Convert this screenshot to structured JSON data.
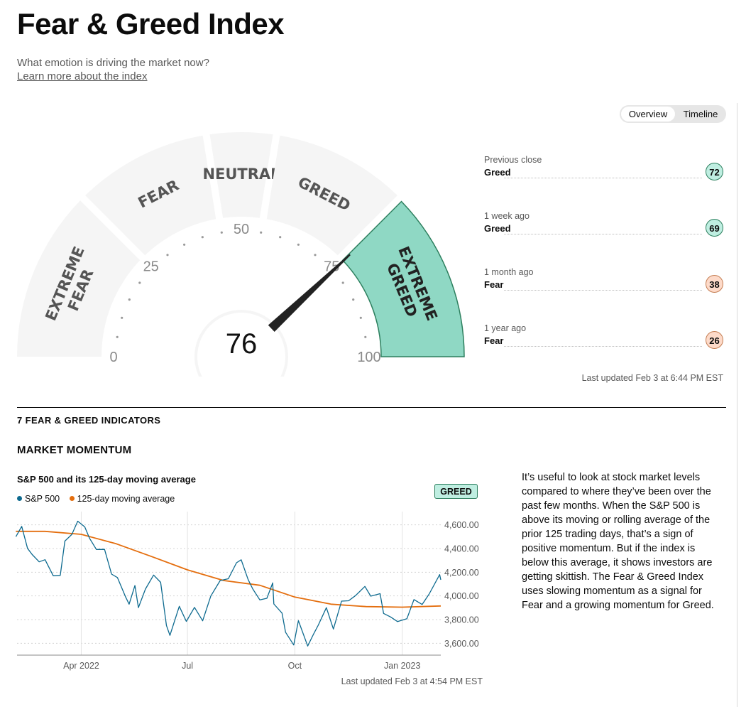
{
  "header": {
    "title": "Fear & Greed Index",
    "subtitle": "What emotion is driving the market now?",
    "learn_more": "Learn more about the index"
  },
  "view_toggle": {
    "options": [
      "Overview",
      "Timeline"
    ],
    "selected": "Overview"
  },
  "gauge": {
    "value": 76,
    "scale_labels": [
      "0",
      "25",
      "50",
      "75",
      "100"
    ],
    "segments": [
      {
        "label_lines": [
          "EXTREME",
          "FEAR"
        ],
        "range": [
          0,
          25
        ]
      },
      {
        "label_lines": [
          "FEAR"
        ],
        "range": [
          25,
          45
        ]
      },
      {
        "label_lines": [
          "NEUTRAL"
        ],
        "range": [
          45,
          55
        ]
      },
      {
        "label_lines": [
          "GREED"
        ],
        "range": [
          55,
          75
        ]
      },
      {
        "label_lines": [
          "EXTREME",
          "GREED"
        ],
        "range": [
          75,
          100
        ]
      }
    ],
    "active_segment": 4,
    "colors": {
      "inactive": "#f5f5f5",
      "active": "#8fd8c4",
      "active_border": "#2d7f5e",
      "needle": "#222222",
      "segment_text": "#555555",
      "active_text": "#222222"
    }
  },
  "history": [
    {
      "label": "Previous close",
      "rating": "Greed",
      "value": "72",
      "tone": "greed"
    },
    {
      "label": "1 week ago",
      "rating": "Greed",
      "value": "69",
      "tone": "greed"
    },
    {
      "label": "1 month ago",
      "rating": "Fear",
      "value": "38",
      "tone": "fear"
    },
    {
      "label": "1 year ago",
      "rating": "Fear",
      "value": "26",
      "tone": "fear"
    }
  ],
  "last_updated_top": "Last updated Feb 3 at 6:44 PM EST",
  "indicators_heading": "7 FEAR & GREED INDICATORS",
  "momentum": {
    "heading": "MARKET MOMENTUM",
    "rating_tag": "GREED",
    "description": "It’s useful to look at stock market levels compared to where they’ve been over the past few months. When the S&P 500 is above its moving or rolling average of the prior 125 trading days, that’s a sign of positive momentum. But if the index is below this average, it shows investors are getting skittish. The Fear & Greed Index uses slowing momentum as a signal for Fear and a growing momentum for Greed.",
    "last_updated": "Last updated Feb 3 at 4:54 PM EST"
  },
  "chart_data": {
    "type": "line",
    "title": "S&P 500 and its 125-day moving average",
    "x_ticks": [
      "Apr 2022",
      "Jul",
      "Oct",
      "Jan 2023"
    ],
    "x_tick_dates": [
      "2022-04-01",
      "2022-07-01",
      "2022-10-01",
      "2023-01-01"
    ],
    "x_range": [
      "2022-02-05",
      "2023-02-03"
    ],
    "y_ticks": [
      "4,600.00",
      "4,400.00",
      "4,200.00",
      "4,000.00",
      "3,800.00",
      "3,600.00"
    ],
    "y_range": [
      3500,
      4700
    ],
    "grid": true,
    "legend_position": "top-left",
    "series": [
      {
        "name": "S&P 500",
        "color": "#0d6a8f",
        "points": [
          [
            "2022-02-04",
            4500
          ],
          [
            "2022-02-09",
            4587
          ],
          [
            "2022-02-14",
            4401
          ],
          [
            "2022-02-18",
            4349
          ],
          [
            "2022-02-24",
            4288
          ],
          [
            "2022-03-01",
            4306
          ],
          [
            "2022-03-08",
            4170
          ],
          [
            "2022-03-14",
            4173
          ],
          [
            "2022-03-18",
            4463
          ],
          [
            "2022-03-24",
            4520
          ],
          [
            "2022-03-29",
            4631
          ],
          [
            "2022-04-04",
            4583
          ],
          [
            "2022-04-08",
            4488
          ],
          [
            "2022-04-14",
            4392
          ],
          [
            "2022-04-21",
            4393
          ],
          [
            "2022-04-27",
            4184
          ],
          [
            "2022-05-02",
            4155
          ],
          [
            "2022-05-09",
            3991
          ],
          [
            "2022-05-12",
            3930
          ],
          [
            "2022-05-17",
            4088
          ],
          [
            "2022-05-20",
            3901
          ],
          [
            "2022-05-26",
            4058
          ],
          [
            "2022-06-02",
            4176
          ],
          [
            "2022-06-08",
            4115
          ],
          [
            "2022-06-13",
            3750
          ],
          [
            "2022-06-16",
            3667
          ],
          [
            "2022-06-24",
            3912
          ],
          [
            "2022-06-30",
            3785
          ],
          [
            "2022-07-07",
            3903
          ],
          [
            "2022-07-14",
            3790
          ],
          [
            "2022-07-21",
            3999
          ],
          [
            "2022-07-29",
            4130
          ],
          [
            "2022-08-05",
            4145
          ],
          [
            "2022-08-12",
            4280
          ],
          [
            "2022-08-16",
            4305
          ],
          [
            "2022-08-22",
            4138
          ],
          [
            "2022-08-26",
            4058
          ],
          [
            "2022-09-01",
            3966
          ],
          [
            "2022-09-07",
            3980
          ],
          [
            "2022-09-12",
            4110
          ],
          [
            "2022-09-13",
            3932
          ],
          [
            "2022-09-20",
            3855
          ],
          [
            "2022-09-23",
            3693
          ],
          [
            "2022-09-30",
            3586
          ],
          [
            "2022-10-04",
            3791
          ],
          [
            "2022-10-12",
            3577
          ],
          [
            "2022-10-17",
            3677
          ],
          [
            "2022-10-21",
            3752
          ],
          [
            "2022-10-28",
            3901
          ],
          [
            "2022-11-03",
            3720
          ],
          [
            "2022-11-10",
            3956
          ],
          [
            "2022-11-16",
            3959
          ],
          [
            "2022-11-22",
            4003
          ],
          [
            "2022-11-30",
            4080
          ],
          [
            "2022-12-05",
            3998
          ],
          [
            "2022-12-13",
            4019
          ],
          [
            "2022-12-16",
            3852
          ],
          [
            "2022-12-22",
            3822
          ],
          [
            "2022-12-28",
            3783
          ],
          [
            "2023-01-05",
            3808
          ],
          [
            "2023-01-11",
            3969
          ],
          [
            "2023-01-18",
            3928
          ],
          [
            "2023-01-24",
            4016
          ],
          [
            "2023-01-27",
            4070
          ],
          [
            "2023-02-02",
            4180
          ],
          [
            "2023-02-03",
            4136
          ]
        ]
      },
      {
        "name": "125-day moving average",
        "color": "#e46e0e",
        "points": [
          [
            "2022-02-04",
            4545
          ],
          [
            "2022-03-01",
            4545
          ],
          [
            "2022-04-01",
            4520
          ],
          [
            "2022-05-01",
            4440
          ],
          [
            "2022-06-01",
            4330
          ],
          [
            "2022-07-01",
            4220
          ],
          [
            "2022-08-01",
            4130
          ],
          [
            "2022-09-01",
            4090
          ],
          [
            "2022-10-01",
            3990
          ],
          [
            "2022-11-01",
            3930
          ],
          [
            "2022-12-01",
            3910
          ],
          [
            "2023-01-01",
            3905
          ],
          [
            "2023-02-03",
            3915
          ]
        ]
      }
    ]
  }
}
